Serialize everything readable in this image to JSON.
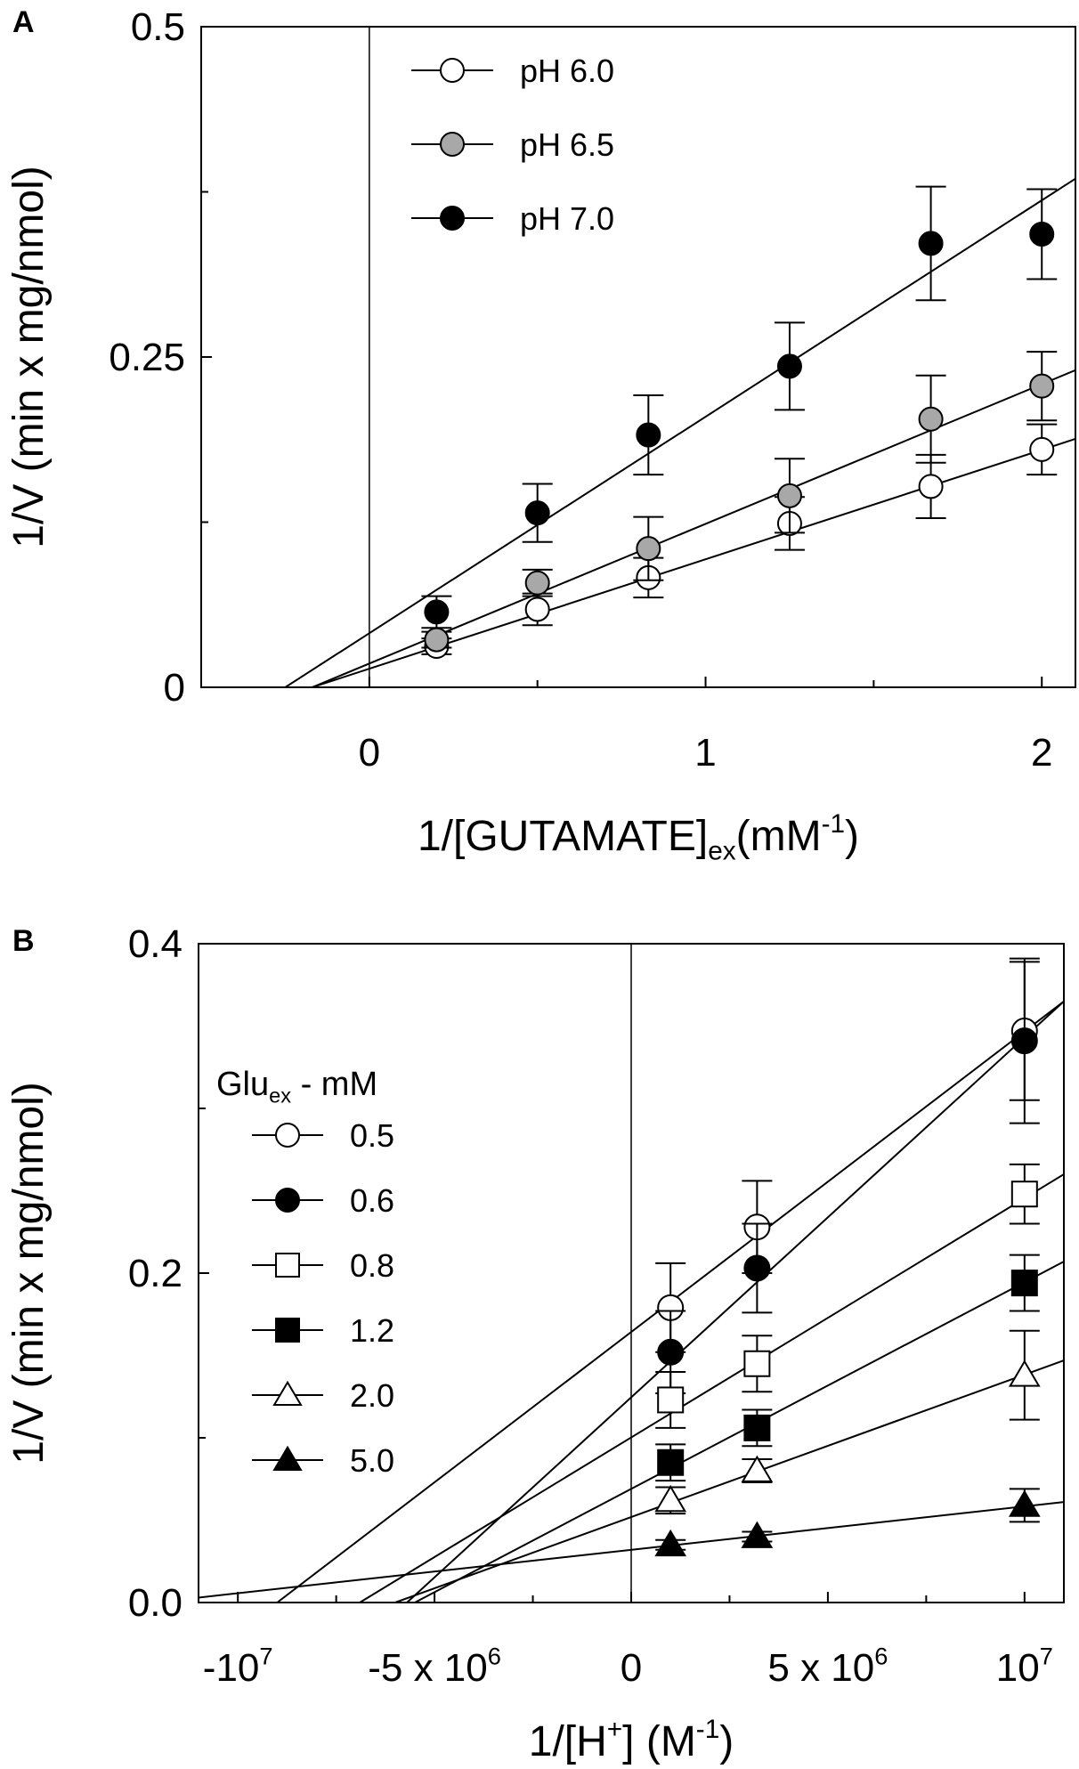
{
  "chart_data": [
    {
      "panel": "A",
      "type": "scatter",
      "xlabel": {
        "main": "1/[GUTAMATE]",
        "sub": "ex",
        "tail": "(mM",
        "sup": "-1",
        "end": ")"
      },
      "ylabel": "1/V (min x mg/nmol)",
      "xlim": [
        -0.5,
        2.1
      ],
      "ylim": [
        0,
        0.5
      ],
      "xticks": [
        0,
        1,
        2
      ],
      "xtick_labels": [
        "0",
        "1",
        "2"
      ],
      "xminor": [
        0.5,
        1.5
      ],
      "yticks": [
        0,
        0.25,
        0.5
      ],
      "ytick_labels": [
        "0",
        "0.25",
        "0.5"
      ],
      "yminor": [
        0.125,
        0.375
      ],
      "zero_line_x": 0,
      "legend_position": "top-left",
      "series": [
        {
          "name": "pH 6.0",
          "marker": "circle-open",
          "color": "#ffffff",
          "x": [
            0.2,
            0.5,
            0.83,
            1.25,
            1.67,
            2.0
          ],
          "y": [
            0.031,
            0.059,
            0.083,
            0.124,
            0.152,
            0.18
          ],
          "err": [
            0.006,
            0.012,
            0.015,
            0.02,
            0.024,
            0.019
          ],
          "fit": {
            "x0": -0.17,
            "y0": 0.0,
            "x1": 2.1,
            "y1": 0.188
          }
        },
        {
          "name": "pH 6.5",
          "marker": "circle-filled",
          "color": "#a8a8a8",
          "x": [
            0.2,
            0.5,
            0.83,
            1.25,
            1.67,
            2.0
          ],
          "y": [
            0.036,
            0.079,
            0.105,
            0.145,
            0.203,
            0.228
          ],
          "err": [
            0.006,
            0.01,
            0.024,
            0.028,
            0.033,
            0.026
          ],
          "fit": {
            "x0": -0.17,
            "y0": 0.0,
            "x1": 2.1,
            "y1": 0.24
          }
        },
        {
          "name": "pH 7.0",
          "marker": "circle-filled",
          "color": "#000000",
          "x": [
            0.2,
            0.5,
            0.83,
            1.25,
            1.67,
            2.0
          ],
          "y": [
            0.057,
            0.132,
            0.191,
            0.243,
            0.336,
            0.343
          ],
          "err": [
            0.012,
            0.022,
            0.03,
            0.033,
            0.043,
            0.034
          ],
          "fit": {
            "x0": -0.25,
            "y0": 0.0,
            "x1": 2.1,
            "y1": 0.385
          }
        }
      ]
    },
    {
      "panel": "B",
      "type": "scatter",
      "xlabel": {
        "main": "1/[H",
        "sup": "+",
        "tail": "] (M",
        "sup2": "-1",
        "end": ")"
      },
      "ylabel": "1/V (min x mg/nmol)",
      "xlim": [
        -11000000,
        11000000
      ],
      "ylim": [
        0,
        0.4
      ],
      "xticks": [
        -10000000,
        -5000000,
        0,
        5000000,
        10000000
      ],
      "xtick_labels": [
        {
          "base": "-10",
          "sup": "7"
        },
        {
          "base": "-5 x 10",
          "sup": "6"
        },
        {
          "base": "0",
          "sup": ""
        },
        {
          "base": "5 x 10",
          "sup": "6"
        },
        {
          "base": "10",
          "sup": "7"
        }
      ],
      "xminor": [
        -7500000,
        -2500000,
        2500000,
        7500000
      ],
      "yticks": [
        0.0,
        0.2,
        0.4
      ],
      "ytick_labels": [
        "0.0",
        "0.2",
        "0.4"
      ],
      "yminor": [
        0.1,
        0.3
      ],
      "zero_line_x": 0,
      "legend_title": {
        "main": "Glu",
        "sub": "ex",
        "tail": " - mM"
      },
      "legend_position": "left",
      "series": [
        {
          "name": "0.5",
          "marker": "circle-open",
          "color": "#ffffff",
          "x": [
            1000000,
            3200000,
            10000000
          ],
          "y": [
            0.179,
            0.228,
            0.347
          ],
          "err": [
            0.027,
            0.028,
            0.042
          ],
          "fit": {
            "x0": -9000000,
            "y0": 0.0,
            "x1": 11000000,
            "y1": 0.365
          }
        },
        {
          "name": "0.6",
          "marker": "circle-filled",
          "color": "#000000",
          "x": [
            1000000,
            3200000,
            10000000
          ],
          "y": [
            0.152,
            0.203,
            0.341
          ],
          "err": [
            0.025,
            0.027,
            0.05
          ],
          "fit": {
            "x0": -5700000,
            "y0": 0.0,
            "x1": 11000000,
            "y1": 0.365
          }
        },
        {
          "name": "0.8",
          "marker": "square-open",
          "color": "#ffffff",
          "x": [
            1000000,
            3200000,
            10000000
          ],
          "y": [
            0.123,
            0.145,
            0.248
          ],
          "err": [
            0.017,
            0.017,
            0.018
          ],
          "fit": {
            "x0": -6900000,
            "y0": 0.0,
            "x1": 11000000,
            "y1": 0.26
          }
        },
        {
          "name": "1.2",
          "marker": "square-filled",
          "color": "#000000",
          "x": [
            1000000,
            3200000,
            10000000
          ],
          "y": [
            0.085,
            0.106,
            0.194
          ],
          "err": [
            0.011,
            0.011,
            0.017
          ],
          "fit": {
            "x0": -5500000,
            "y0": 0.0,
            "x1": 11000000,
            "y1": 0.207
          }
        },
        {
          "name": "2.0",
          "marker": "triangle-open",
          "color": "#ffffff",
          "x": [
            1000000,
            3200000,
            10000000
          ],
          "y": [
            0.062,
            0.08,
            0.138
          ],
          "err": [
            0.008,
            0.007,
            0.027
          ],
          "fit": {
            "x0": -6000000,
            "y0": 0.0,
            "x1": 11000000,
            "y1": 0.147
          }
        },
        {
          "name": "5.0",
          "marker": "triangle-filled",
          "color": "#000000",
          "x": [
            1000000,
            3200000,
            10000000
          ],
          "y": [
            0.035,
            0.04,
            0.059
          ],
          "err": [
            0.003,
            0.003,
            0.01
          ],
          "fit": {
            "x0": -11000000,
            "y0": 0.003,
            "x1": 11000000,
            "y1": 0.061
          }
        }
      ]
    }
  ]
}
